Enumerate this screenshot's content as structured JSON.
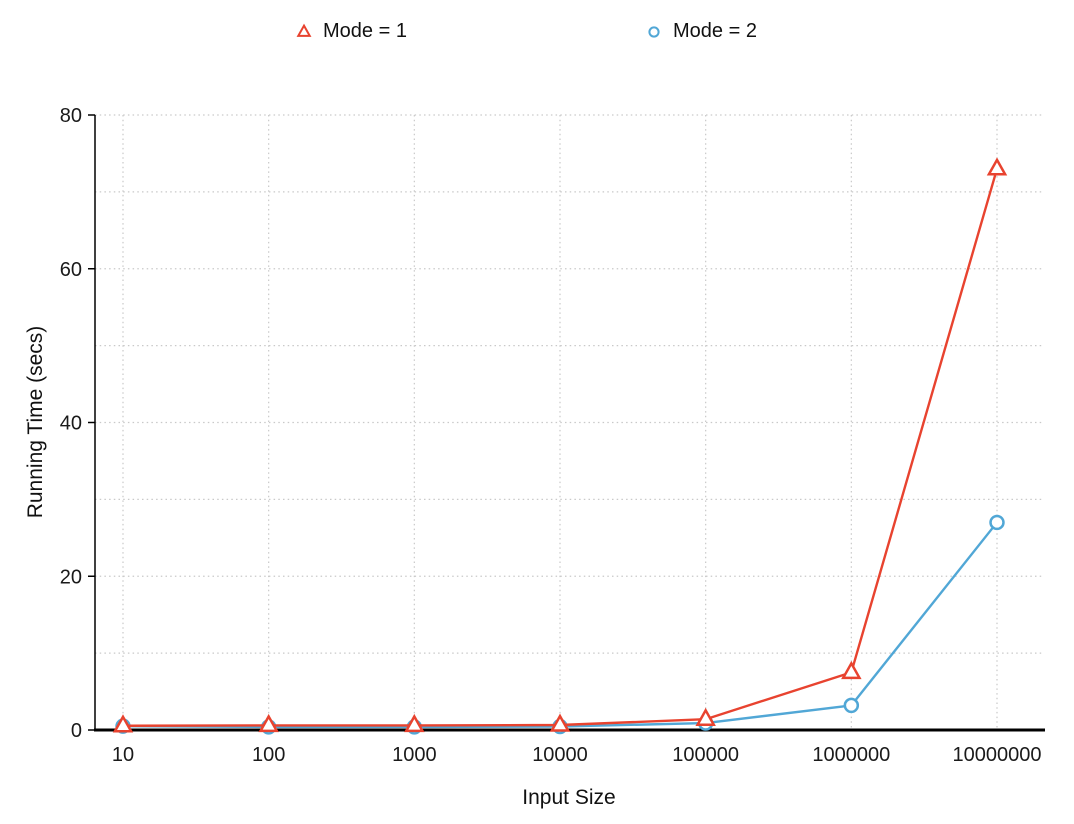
{
  "chart_data": {
    "type": "line",
    "title": "",
    "xlabel": "Input Size",
    "ylabel": "Running Time (secs)",
    "categories": [
      "10",
      "100",
      "1000",
      "10000",
      "100000",
      "1000000",
      "10000000"
    ],
    "x_scale": "logarithmic-categorical",
    "ylim": [
      0,
      80
    ],
    "yticks": [
      0,
      20,
      40,
      60,
      80
    ],
    "grid_step": 10,
    "grid": true,
    "legend_position": "top",
    "series": [
      {
        "name": "Mode = 1",
        "marker": "triangle",
        "color": "#e8432f",
        "values": [
          0.55,
          0.6,
          0.6,
          0.65,
          1.4,
          7.5,
          73
        ]
      },
      {
        "name": "Mode = 2",
        "marker": "circle",
        "color": "#51a7d6",
        "values": [
          0.5,
          0.4,
          0.4,
          0.45,
          0.9,
          3.2,
          27
        ]
      }
    ],
    "colors": {
      "grid": "#c9c9c9",
      "axis": "#000000",
      "text": "#1a1a1a"
    }
  }
}
